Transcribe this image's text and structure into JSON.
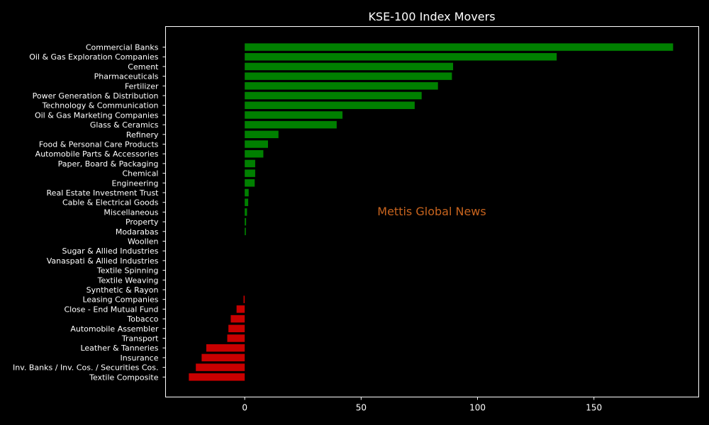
{
  "chart_data": {
    "type": "bar",
    "orientation": "horizontal",
    "title": "KSE-100 Index Movers",
    "watermark": "Mettis Global News",
    "xlim": [
      -34,
      195
    ],
    "xticks": [
      0,
      50,
      100,
      150
    ],
    "grid": false,
    "colors": {
      "positive": "#008000",
      "negative": "#c80000",
      "background": "#000000",
      "axis": "#ffffff"
    },
    "categories": [
      "Commercial Banks",
      "Oil & Gas Exploration Companies",
      "Cement",
      "Pharmaceuticals",
      "Fertilizer",
      "Power Generation & Distribution",
      "Technology & Communication",
      "Oil & Gas Marketing Companies",
      "Glass & Ceramics",
      "Refinery",
      "Food & Personal Care Products",
      "Automobile Parts & Accessories",
      "Paper, Board & Packaging",
      "Chemical",
      "Engineering",
      "Real Estate Investment Trust",
      "Cable & Electrical Goods",
      "Miscellaneous",
      "Property",
      "Modarabas",
      "Woollen",
      "Sugar & Allied Industries",
      "Vanaspati & Allied Industries",
      "Textile Spinning",
      "Textile Weaving",
      "Synthetic & Rayon",
      "Leasing Companies",
      "Close - End Mutual Fund",
      "Tobacco",
      "Automobile Assembler",
      "Transport",
      "Leather & Tanneries",
      "Insurance",
      "Inv. Banks / Inv. Cos. / Securities Cos.",
      "Textile Composite"
    ],
    "values": [
      184,
      134,
      89.5,
      89,
      83,
      76,
      73,
      42,
      39.5,
      14.5,
      10,
      8,
      4.5,
      4.5,
      4.3,
      1.7,
      1.5,
      1,
      0.6,
      0.5,
      0,
      0,
      0,
      0,
      0,
      0,
      -0.5,
      -3.5,
      -6,
      -7,
      -7.5,
      -16.5,
      -18.5,
      -21,
      -24
    ]
  }
}
